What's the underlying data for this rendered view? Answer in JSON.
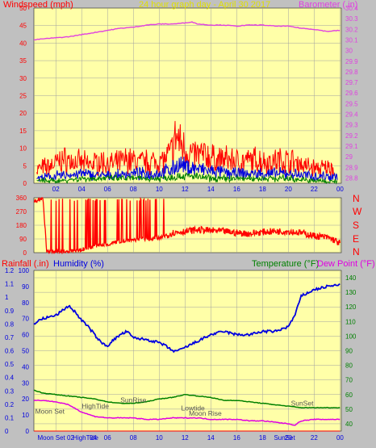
{
  "colors": {
    "background": "#C0C0C0",
    "plot": "#FFFFA8",
    "grid": "#A0A0A0",
    "axis": "#202020",
    "wind_avg": "#008000",
    "humidity": "#0000E0",
    "wind_gust": "#FF0000",
    "baro": "#E040E0",
    "temp": "#008000",
    "dew": "#E000E0",
    "rain": "#FF0000",
    "title": "#E0E000"
  },
  "header": {
    "wind_label": "Windspeed (mph)",
    "title": "24 hour graph day - April 30 2017",
    "baro_label": "Barometer (.in)"
  },
  "lower_header": {
    "rain_label": "Rainfall (.in)",
    "humidity_label": "Humidity (%)",
    "temp_label": "Temperature (°F)",
    "dew_label": "Dew Point (°F)"
  },
  "direction_letters": [
    "N",
    "W",
    "S",
    "E",
    "N"
  ],
  "x_ticks": [
    "02",
    "04",
    "06",
    "08",
    "10",
    "12",
    "14",
    "16",
    "18",
    "20",
    "22",
    "00"
  ],
  "lower_x_labels": [
    {
      "hour": 2.0,
      "text": "Moon Set 02"
    },
    {
      "hour": 4.3,
      "text": "HighTide"
    },
    {
      "hour": 4.9,
      "text": "04"
    },
    {
      "hour": 6,
      "text": "06"
    },
    {
      "hour": 8,
      "text": "08"
    },
    {
      "hour": 10,
      "text": "10"
    },
    {
      "hour": 12,
      "text": "12"
    },
    {
      "hour": 14,
      "text": "14"
    },
    {
      "hour": 16,
      "text": "16"
    },
    {
      "hour": 18,
      "text": "18"
    },
    {
      "hour": 19.7,
      "text": "SunSet"
    },
    {
      "hour": 20,
      "text": "20"
    },
    {
      "hour": 22,
      "text": "22"
    },
    {
      "hour": 24,
      "text": "00"
    }
  ],
  "events": [
    {
      "hour": 0.4,
      "y_temp": 47,
      "text": "Moon Set"
    },
    {
      "hour": 4.0,
      "y_temp": 50.5,
      "text": "HighTide"
    },
    {
      "hour": 7.0,
      "y_temp": 54.5,
      "text": "SunRise"
    },
    {
      "hour": 11.7,
      "y_temp": 49,
      "text": "Lowtide"
    },
    {
      "hour": 12.3,
      "y_temp": 45.5,
      "text": "Moon Rise"
    },
    {
      "hour": 20.2,
      "y_temp": 52.5,
      "text": "SunSet"
    }
  ],
  "chart_data": [
    {
      "type": "line",
      "xlabel": "",
      "xlim": [
        0.3,
        24.1
      ],
      "y_left": {
        "label": "Windspeed (mph)",
        "lim": [
          0,
          50
        ],
        "ticks": [
          0,
          5,
          10,
          15,
          20,
          25,
          30,
          35,
          40,
          45,
          50
        ]
      },
      "y_right": {
        "label": "Barometer (.in)",
        "lim": [
          28.75,
          30.4
        ],
        "ticks": [
          28.8,
          28.9,
          29.0,
          29.1,
          29.2,
          29.3,
          29.4,
          29.5,
          29.6,
          29.7,
          29.8,
          29.9,
          30.0,
          30.1,
          30.2,
          30.3,
          30.4
        ],
        "tick_labels": [
          "28.8",
          "28.9",
          "29",
          "29.1",
          "29.2",
          "29.3",
          "29.4",
          "29.5",
          "29.6",
          "29.7",
          "29.8",
          "29.9",
          "30",
          "30.1",
          "30.2",
          "30.3",
          "30.4"
        ]
      },
      "series": [
        {
          "name": "Barometer",
          "axis": "right",
          "color": "#E040E0",
          "x": [
            0.3,
            1,
            2,
            3,
            4,
            5,
            6,
            7,
            8,
            9,
            10,
            11,
            12,
            12.5,
            13,
            14,
            15,
            16,
            17,
            18,
            19,
            20,
            21,
            22,
            23,
            24
          ],
          "y": [
            30.1,
            30.11,
            30.12,
            30.13,
            30.15,
            30.17,
            30.19,
            30.21,
            30.22,
            30.24,
            30.25,
            30.25,
            30.26,
            30.27,
            30.25,
            30.24,
            30.24,
            30.23,
            30.24,
            30.24,
            30.23,
            30.23,
            30.21,
            30.2,
            30.18,
            30.19
          ]
        },
        {
          "name": "Wind gust",
          "axis": "left",
          "color": "#FF0000",
          "x": [
            0.5,
            1.5,
            2.5,
            3.5,
            4.5,
            5.5,
            6.5,
            7.5,
            8.5,
            9.5,
            10.5,
            11,
            11.3,
            11.8,
            12.5,
            13.5,
            14.5,
            15.5,
            16.5,
            17.5,
            18.5,
            19.5,
            20.5,
            21.5,
            22.5,
            23.5
          ],
          "y": [
            6,
            7,
            10,
            9,
            8,
            9,
            8,
            10,
            9,
            9,
            10,
            14,
            20,
            16,
            12,
            12,
            10,
            10,
            9,
            10,
            9,
            10,
            9,
            7,
            6,
            7
          ]
        },
        {
          "name": "Wind avg",
          "axis": "left",
          "color": "#0000E0",
          "x": [
            0.5,
            2,
            4,
            6,
            8,
            10,
            11,
            11.5,
            12,
            13,
            14,
            16,
            18,
            20,
            22,
            23.8
          ],
          "y": [
            2,
            3,
            4,
            3,
            4,
            4,
            6,
            8,
            7,
            6,
            5,
            4,
            4,
            4,
            3,
            3
          ]
        },
        {
          "name": "Wind low",
          "axis": "left",
          "color": "#008000",
          "x": [
            0.5,
            2,
            4,
            6,
            8,
            10,
            11.5,
            12.5,
            14,
            16,
            18,
            20,
            22,
            23.8
          ],
          "y": [
            1,
            1,
            2,
            2,
            2,
            2,
            3,
            3,
            2,
            2,
            2,
            2,
            1,
            1
          ]
        }
      ]
    },
    {
      "type": "line",
      "xlim": [
        0.3,
        24.1
      ],
      "ylim": [
        0,
        360
      ],
      "ticks": [
        0,
        90,
        180,
        270,
        360
      ],
      "series": [
        {
          "name": "Wind direction",
          "color": "#FF0000",
          "x": [
            0.3,
            0.5,
            1.0,
            1.3,
            2.0,
            3.0,
            4.0,
            5.0,
            6.0,
            7.0,
            8.0,
            9.0,
            10.0,
            10.5,
            11.0,
            12.0,
            12.5,
            13.0,
            14.0,
            15.0,
            16.0,
            17.0,
            18.0,
            19.0,
            20.0,
            21.0,
            22.0,
            23.0,
            23.5,
            24.0
          ],
          "y": [
            330,
            340,
            355,
            5,
            5,
            5,
            20,
            40,
            55,
            75,
            85,
            90,
            95,
            110,
            130,
            140,
            145,
            150,
            145,
            140,
            130,
            125,
            135,
            140,
            140,
            130,
            110,
            100,
            85,
            60
          ]
        }
      ]
    },
    {
      "type": "line",
      "xlim": [
        0.3,
        24.1
      ],
      "y_left_outer": {
        "label": "Rainfall (.in)",
        "lim": [
          0,
          1.2
        ],
        "ticks": [
          0,
          0.1,
          0.2,
          0.3,
          0.4,
          0.5,
          0.6,
          0.7,
          0.8,
          0.9,
          1,
          1.1,
          1.2
        ]
      },
      "y_left_inner": {
        "label": "Humidity (%)",
        "lim": [
          0,
          100
        ],
        "ticks": [
          0,
          10,
          20,
          30,
          40,
          50,
          60,
          70,
          80,
          90,
          100
        ]
      },
      "y_right": {
        "label": "Temperature (°F)",
        "lim": [
          35,
          145
        ],
        "ticks": [
          40,
          50,
          60,
          70,
          80,
          90,
          100,
          110,
          120,
          130,
          140
        ]
      },
      "series": [
        {
          "name": "Humidity",
          "axis": "left_inner",
          "color": "#0000E0",
          "x": [
            0.3,
            1,
            2,
            3,
            3.5,
            4,
            4.5,
            5,
            5.5,
            6,
            6.5,
            7,
            7.5,
            8,
            9,
            10,
            10.5,
            11,
            11.5,
            12,
            13,
            14,
            15,
            16,
            17,
            18,
            19,
            20,
            20.5,
            21,
            22,
            23,
            24
          ],
          "y": [
            67,
            70,
            72,
            78,
            74,
            69,
            65,
            60,
            55,
            53,
            57,
            60,
            62,
            58,
            57,
            55,
            53,
            50,
            50,
            52,
            56,
            60,
            62,
            60,
            60,
            62,
            62,
            65,
            72,
            84,
            88,
            90,
            91
          ]
        },
        {
          "name": "Temperature",
          "axis": "right",
          "color": "#008000",
          "x": [
            0.3,
            1,
            2,
            3,
            4,
            5,
            6,
            7,
            8,
            9,
            10,
            11,
            12,
            13,
            14,
            15,
            16,
            17,
            18,
            19,
            20,
            21,
            22,
            23,
            24
          ],
          "y": [
            63,
            61,
            60,
            59,
            58,
            57,
            55,
            54,
            54,
            55,
            57,
            58,
            60,
            59,
            58,
            56,
            56,
            55,
            54,
            53,
            52,
            51,
            51,
            51,
            51
          ]
        },
        {
          "name": "Dew Point",
          "axis": "right",
          "color": "#E000E0",
          "x": [
            0.3,
            1,
            2,
            3,
            4,
            5,
            6,
            7,
            8,
            9,
            10,
            11,
            12,
            13,
            14,
            15,
            16,
            17,
            18,
            19,
            20,
            20.5,
            21,
            22,
            23,
            24
          ],
          "y": [
            56,
            56,
            55,
            53,
            48,
            45,
            44,
            44,
            44,
            43,
            43,
            44,
            44,
            44,
            43,
            43,
            43,
            42,
            42,
            41,
            40,
            39,
            42,
            43,
            43,
            43
          ]
        },
        {
          "name": "Rain",
          "axis": "left_outer",
          "color": "#FF0000",
          "x": [
            0.3,
            24
          ],
          "y": [
            0,
            0
          ]
        }
      ]
    }
  ]
}
